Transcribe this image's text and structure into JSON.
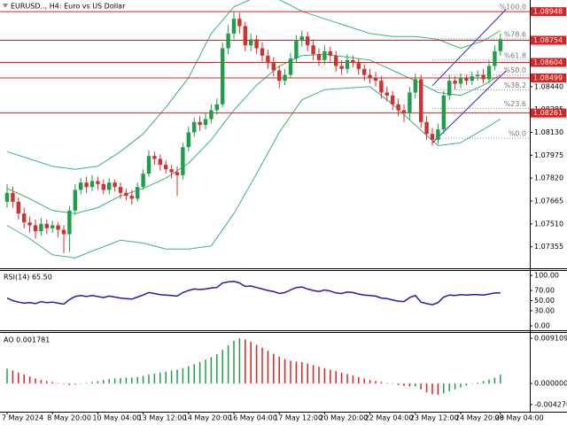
{
  "chart_data": [
    {
      "type": "candlestick",
      "title": "EURUSD.., H4:  Euro vs US Dollar",
      "categories": [
        "7 May 2024",
        null,
        null,
        null,
        null,
        null,
        null,
        null,
        "8 May 20:00",
        null,
        null,
        null,
        null,
        null,
        null,
        null,
        "10 May 04:00",
        null,
        null,
        null,
        null,
        null,
        null,
        null,
        "13 May 12:00",
        null,
        null,
        null,
        null,
        null,
        null,
        null,
        "14 May 20:00",
        null,
        null,
        null,
        null,
        null,
        null,
        null,
        "16 May 04:00",
        null,
        null,
        null,
        null,
        null,
        null,
        null,
        "17 May 12:00",
        null,
        null,
        null,
        null,
        null,
        null,
        null,
        "20 May 20:00",
        null,
        null,
        null,
        null,
        null,
        null,
        null,
        "22 May 04:00",
        null,
        null,
        null,
        null,
        null,
        null,
        null,
        "23 May 12:00",
        null,
        null,
        null,
        null,
        null,
        null,
        null,
        "24 May 20:00",
        null,
        null,
        null,
        null,
        null,
        null,
        "28 May 04:00"
      ],
      "open": [
        1.0766,
        1.0772,
        1.0766,
        1.0758,
        1.0752,
        1.075,
        1.0746,
        1.0751,
        1.0748,
        1.075,
        1.0747,
        1.0744,
        1.076,
        1.0774,
        1.0779,
        1.0776,
        1.078,
        1.0778,
        1.0774,
        1.0779,
        1.0776,
        1.0772,
        1.077,
        1.0768,
        1.0776,
        1.0785,
        1.0797,
        1.0795,
        1.0791,
        1.0788,
        1.0786,
        1.0784,
        1.0803,
        1.0813,
        1.082,
        1.0818,
        1.0822,
        1.0828,
        1.0832,
        1.087,
        1.088,
        1.089,
        1.0885,
        1.0872,
        1.0876,
        1.087,
        1.0865,
        1.086,
        1.0855,
        1.0848,
        1.0852,
        1.0863,
        1.0875,
        1.0878,
        1.0872,
        1.0866,
        1.0862,
        1.0868,
        1.0865,
        1.0858,
        1.0856,
        1.0862,
        1.086,
        1.0856,
        1.0852,
        1.085,
        1.0848,
        1.084,
        1.0838,
        1.0832,
        1.0828,
        1.0826,
        1.084,
        1.0849,
        1.082,
        1.0812,
        1.0808,
        1.0815,
        1.0838,
        1.0848,
        1.0846,
        1.085,
        1.0848,
        1.0851,
        1.0852,
        1.0849,
        1.0858,
        1.0868
      ],
      "high": [
        1.0778,
        1.0776,
        1.0769,
        1.0762,
        1.0756,
        1.0754,
        1.0755,
        1.0754,
        1.0753,
        1.0752,
        1.075,
        1.0763,
        1.0778,
        1.0782,
        1.0783,
        1.0784,
        1.0783,
        1.0781,
        1.0782,
        1.0781,
        1.0779,
        1.0775,
        1.0774,
        1.0779,
        1.0788,
        1.0801,
        1.08,
        1.0798,
        1.0794,
        1.0791,
        1.079,
        1.0806,
        1.0817,
        1.0823,
        1.0824,
        1.0826,
        1.0832,
        1.0836,
        1.0874,
        1.0886,
        1.0895,
        1.0894,
        1.0888,
        1.088,
        1.0879,
        1.0874,
        1.0869,
        1.0864,
        1.0858,
        1.0856,
        1.0867,
        1.0879,
        1.0882,
        1.0881,
        1.0876,
        1.087,
        1.0872,
        1.0871,
        1.0868,
        1.0862,
        1.0866,
        1.0865,
        1.0863,
        1.0859,
        1.0856,
        1.0854,
        1.0851,
        1.0844,
        1.0841,
        1.0836,
        1.0832,
        1.0844,
        1.0853,
        1.0852,
        1.0824,
        1.0816,
        1.0819,
        1.0841,
        1.0852,
        1.0851,
        1.0853,
        1.0852,
        1.0854,
        1.0855,
        1.0856,
        1.0862,
        1.0872,
        1.088
      ],
      "low": [
        1.0762,
        1.0762,
        1.0754,
        1.0748,
        1.0745,
        1.0741,
        1.0743,
        1.0744,
        1.0745,
        1.0742,
        1.0731,
        1.0732,
        1.0757,
        1.0771,
        1.0772,
        1.0773,
        1.0774,
        1.0771,
        1.0771,
        1.0773,
        1.0768,
        1.0767,
        1.0764,
        1.0766,
        1.0774,
        1.0783,
        1.0791,
        1.0787,
        1.0785,
        1.0782,
        1.077,
        1.0781,
        1.08,
        1.081,
        1.0814,
        1.0815,
        1.0819,
        1.0825,
        1.083,
        1.0866,
        1.0876,
        1.088,
        1.0868,
        1.0868,
        1.0866,
        1.0861,
        1.0856,
        1.0851,
        1.0843,
        1.0845,
        1.085,
        1.086,
        1.0871,
        1.0868,
        1.0862,
        1.0858,
        1.0859,
        1.0861,
        1.0854,
        1.0852,
        1.0853,
        1.0857,
        1.0852,
        1.0848,
        1.0846,
        1.0844,
        1.0836,
        1.0834,
        1.0828,
        1.0824,
        1.082,
        1.0822,
        1.0836,
        1.0816,
        1.0808,
        1.0804,
        1.0805,
        1.0812,
        1.0835,
        1.0842,
        1.0843,
        1.0845,
        1.0845,
        1.0848,
        1.0846,
        1.0846,
        1.0855,
        1.0865
      ],
      "close": [
        1.0772,
        1.0766,
        1.0758,
        1.0752,
        1.075,
        1.0746,
        1.0751,
        1.0748,
        1.075,
        1.0747,
        1.0744,
        1.076,
        1.0774,
        1.0779,
        1.0776,
        1.078,
        1.0778,
        1.0774,
        1.0779,
        1.0776,
        1.0772,
        1.077,
        1.0768,
        1.0776,
        1.0785,
        1.0797,
        1.0795,
        1.0791,
        1.0788,
        1.0786,
        1.0784,
        1.0803,
        1.0813,
        1.082,
        1.0818,
        1.0822,
        1.0828,
        1.0832,
        1.087,
        1.088,
        1.089,
        1.0885,
        1.0872,
        1.0876,
        1.087,
        1.0865,
        1.086,
        1.0855,
        1.0848,
        1.0852,
        1.0863,
        1.0875,
        1.0878,
        1.0872,
        1.0866,
        1.0862,
        1.0868,
        1.0865,
        1.0858,
        1.0856,
        1.0862,
        1.086,
        1.0856,
        1.0852,
        1.085,
        1.0848,
        1.084,
        1.0838,
        1.0832,
        1.0828,
        1.0826,
        1.084,
        1.0849,
        1.082,
        1.0812,
        1.0808,
        1.0815,
        1.0838,
        1.0848,
        1.0846,
        1.085,
        1.0848,
        1.0851,
        1.0852,
        1.0849,
        1.0858,
        1.0868,
        1.0876
      ],
      "up_color": "#1e9e4a",
      "down_color": "#d32f2f",
      "ylim": [
        1.07215,
        1.09015
      ],
      "yticks": [
        1.07355,
        {
          "value": 1.0751,
          "label": "1.07510"
        },
        1.07665,
        {
          "value": 1.0782,
          "label": "1.07820"
        },
        1.07975,
        {
          "value": 1.0813,
          "label": "1.08130"
        },
        1.08285,
        {
          "value": 1.0844,
          "label": "1.08440"
        }
      ],
      "grid": false,
      "bands": {
        "color": "#3cb371",
        "x": [
          0,
          4,
          8,
          12,
          16,
          20,
          24,
          28,
          32,
          36,
          40,
          44,
          48,
          52,
          56,
          60,
          64,
          68,
          72,
          76,
          80,
          84,
          87
        ],
        "upper": [
          1.08,
          1.0795,
          1.079,
          1.0788,
          1.079,
          1.08,
          1.0812,
          1.083,
          1.085,
          1.088,
          1.0898,
          1.0905,
          1.0903,
          1.0895,
          1.089,
          1.0885,
          1.088,
          1.0878,
          1.0878,
          1.0876,
          1.087,
          1.0875,
          1.0882
        ],
        "middle": [
          1.0775,
          1.0768,
          1.076,
          1.0758,
          1.0762,
          1.077,
          1.0775,
          1.0782,
          1.0792,
          1.0808,
          1.0828,
          1.0845,
          1.0858,
          1.0865,
          1.0866,
          1.0864,
          1.0862,
          1.0855,
          1.0848,
          1.084,
          1.0838,
          1.0845,
          1.0852
        ],
        "lower": [
          1.075,
          1.0741,
          1.073,
          1.0728,
          1.0734,
          1.074,
          1.0738,
          1.0734,
          1.0734,
          1.0736,
          1.0758,
          1.0785,
          1.0813,
          1.0835,
          1.0842,
          1.0843,
          1.0844,
          1.0832,
          1.0818,
          1.0804,
          1.0806,
          1.0815,
          1.0822
        ]
      },
      "levels": [
        1.08948,
        1.08754,
        1.08604,
        1.08499,
        1.08261
      ],
      "level_color": "#e02020",
      "fib": {
        "high": 1.08948,
        "low": 1.0809,
        "start": 75,
        "color": "#999999",
        "levels": [
          {
            "value": 100,
            "label": "%100.0"
          },
          {
            "value": 78.6,
            "label": "%78.6"
          },
          {
            "value": 61.8,
            "label": "%61.8"
          },
          {
            "value": 50,
            "label": "%50.0"
          },
          {
            "value": 38.2,
            "label": "%38.2"
          },
          {
            "value": 23.6,
            "label": "%23.6"
          },
          {
            "value": 0,
            "label": "%0.0"
          }
        ]
      },
      "channel": {
        "color": "#2a2ad0",
        "x": [
          75,
          88
        ],
        "upper": [
          1.08446,
          1.08964
        ],
        "lower": [
          1.08058,
          1.08547
        ]
      }
    },
    {
      "type": "line",
      "title": "RSI(14) 65.50",
      "values": [
        55,
        50,
        47,
        45,
        46,
        44,
        48,
        46,
        47,
        45,
        43,
        52,
        58,
        60,
        58,
        60,
        58,
        56,
        59,
        57,
        55,
        54,
        53,
        57,
        61,
        66,
        64,
        62,
        61,
        60,
        59,
        66,
        70,
        73,
        72,
        73,
        75,
        76,
        85,
        87,
        88,
        85,
        78,
        79,
        76,
        73,
        70,
        68,
        64,
        66,
        71,
        76,
        77,
        73,
        70,
        68,
        71,
        69,
        65,
        64,
        67,
        66,
        63,
        61,
        60,
        59,
        55,
        54,
        51,
        49,
        48,
        56,
        60,
        47,
        44,
        42,
        46,
        57,
        61,
        60,
        62,
        61,
        62,
        62,
        61,
        63,
        65,
        65.5
      ],
      "color": "#1f1fa8",
      "ylim": [
        0,
        100
      ],
      "yticks": [
        {
          "value": 100,
          "label": "100.00"
        },
        {
          "value": 70,
          "label": "70.00"
        },
        {
          "value": 50,
          "label": "50.00"
        },
        {
          "value": 30,
          "label": "30.00"
        },
        {
          "value": 0,
          "label": "0.00"
        }
      ]
    },
    {
      "type": "bar",
      "title": "AO 0.001781",
      "values": [
        0.003,
        0.0026,
        0.0022,
        0.0018,
        0.0014,
        0.001,
        0.0007,
        0.0005,
        0.0003,
        0.0001,
        -0.0001,
        -0.0003,
        -0.0002,
        -0.0001,
        0.0001,
        0.0003,
        0.0005,
        0.0007,
        0.0009,
        0.001,
        0.0011,
        0.0012,
        0.0012,
        0.0013,
        0.0015,
        0.0018,
        0.002,
        0.0022,
        0.0024,
        0.0026,
        0.0028,
        0.0031,
        0.0035,
        0.0039,
        0.0043,
        0.0048,
        0.0053,
        0.0059,
        0.0068,
        0.0077,
        0.0086,
        0.0091,
        0.0089,
        0.0084,
        0.0078,
        0.0072,
        0.0066,
        0.006,
        0.0054,
        0.0049,
        0.0046,
        0.0044,
        0.0043,
        0.004,
        0.0037,
        0.0034,
        0.0031,
        0.0028,
        0.0025,
        0.0022,
        0.0019,
        0.0016,
        0.0013,
        0.001,
        0.0007,
        0.0005,
        0.0003,
        0.0001,
        -0.0001,
        -0.0003,
        -0.0005,
        -0.0006,
        -0.0006,
        -0.0012,
        -0.0018,
        -0.0022,
        -0.0023,
        -0.002,
        -0.0016,
        -0.0012,
        -0.0008,
        -0.0004,
        -0.0001,
        0.0002,
        0.0005,
        0.0008,
        0.0012,
        0.001781
      ],
      "up_color": "#1e9e4a",
      "down_color": "#e02020",
      "ylim": [
        -0.0057,
        0.0102
      ],
      "yticks": [
        0.009109,
        {
          "value": 0,
          "label": "0.000000"
        },
        {
          "value": -0.00427,
          "label": "-0.004270"
        }
      ]
    }
  ]
}
